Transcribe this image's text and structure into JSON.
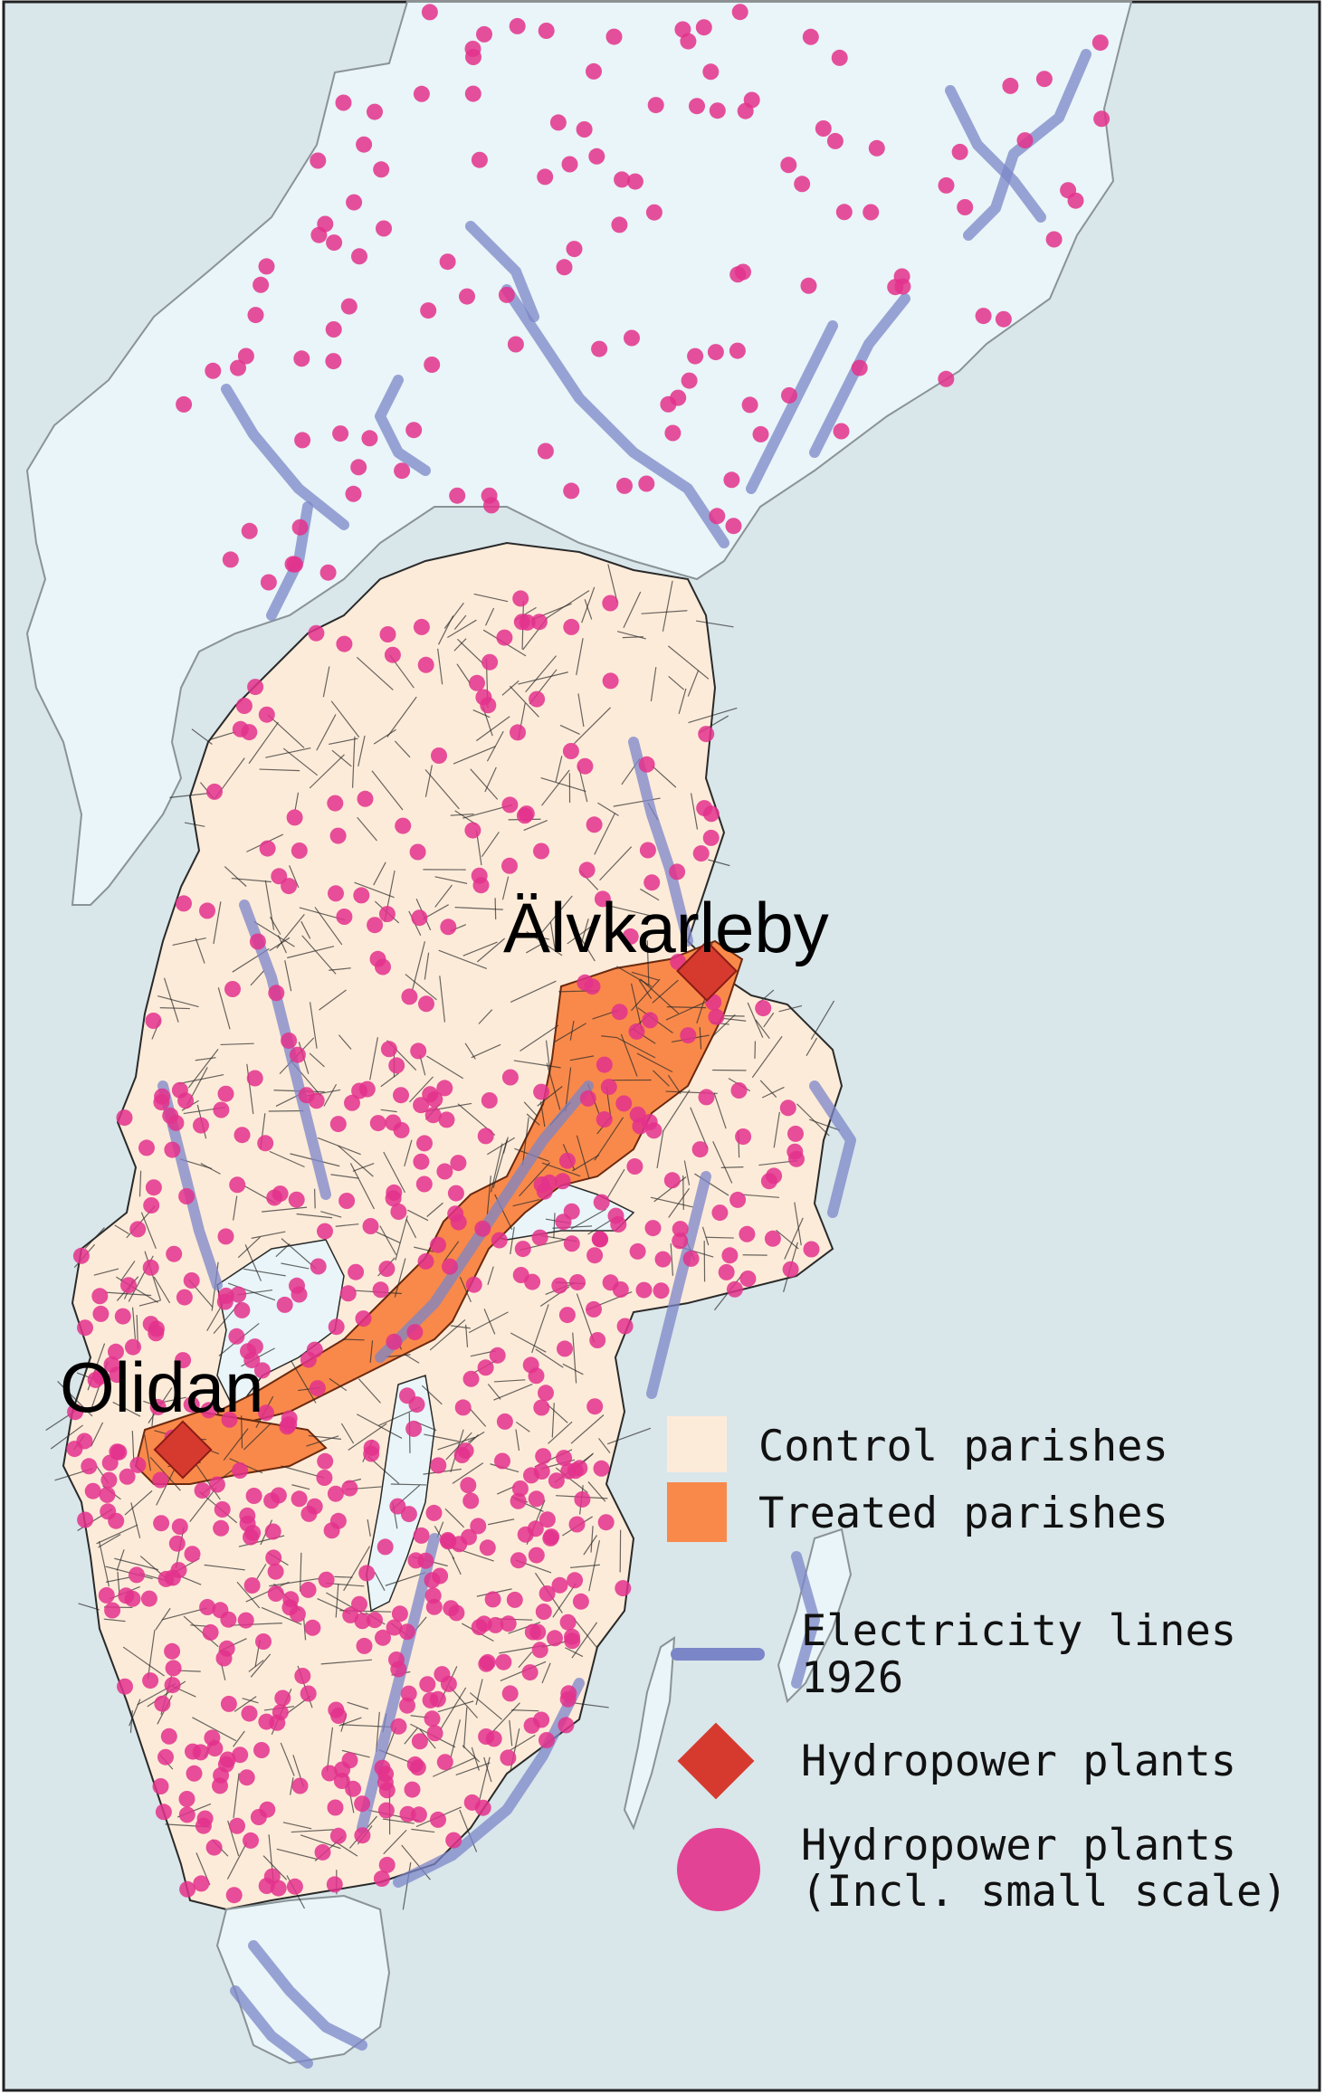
{
  "map": {
    "colors": {
      "sea": "#d9e6ea",
      "north_land": "#e9f5f8",
      "control": "#fdebd9",
      "treated": "#f9894a",
      "border": "#2a2a2a",
      "light_border": "#8a9396",
      "electric_line": "#7b86c8",
      "hydro_large": "#d63a2f",
      "hydro_small": "#e3318c"
    },
    "labels": {
      "alvkarleby": "Älvkarleby",
      "olidan": "Olidan"
    }
  },
  "legend": {
    "control": "Control parishes",
    "treated": "Treated parishes",
    "electric_line_1": "Electricity lines",
    "electric_line_2": "1926",
    "hydro_large": "Hydropower plants",
    "hydro_small_1": "Hydropower plants",
    "hydro_small_2": "(Incl. small scale)"
  }
}
